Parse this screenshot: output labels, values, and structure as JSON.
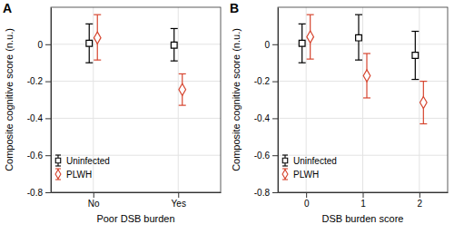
{
  "chart_data": [
    {
      "type": "errorbar",
      "title": "A",
      "x_label": "Poor DSB burden",
      "y_label": "Composite cognitive score (n.u.)",
      "categories": [
        "No",
        "Yes"
      ],
      "series": [
        {
          "name": "Uninfected",
          "color": "#000000",
          "marker": "square",
          "values": [
            0.005,
            -0.005
          ],
          "ci_low": [
            -0.1,
            -0.09
          ],
          "ci_high": [
            0.11,
            0.085
          ]
        },
        {
          "name": "PLWH",
          "color": "#d6452f",
          "marker": "diamond",
          "values": [
            0.035,
            -0.245
          ],
          "ci_low": [
            -0.085,
            -0.33
          ],
          "ci_high": [
            0.16,
            -0.16
          ]
        }
      ],
      "ylim": [
        -0.8,
        0.2
      ],
      "yticks": [
        -0.8,
        -0.6,
        -0.4,
        -0.2,
        0
      ],
      "grid": true,
      "legend": "lower left"
    },
    {
      "type": "errorbar",
      "title": "B",
      "x_label": "DSB burden score",
      "y_label": "Composite cognitive score (n.u.)",
      "categories": [
        "0",
        "1",
        "2"
      ],
      "series": [
        {
          "name": "Uninfected",
          "color": "#000000",
          "marker": "square",
          "values": [
            0.005,
            0.035,
            -0.06
          ],
          "ci_low": [
            -0.1,
            -0.085,
            -0.19
          ],
          "ci_high": [
            0.11,
            0.16,
            0.07
          ]
        },
        {
          "name": "PLWH",
          "color": "#d6452f",
          "marker": "diamond",
          "values": [
            0.04,
            -0.17,
            -0.315
          ],
          "ci_low": [
            -0.08,
            -0.29,
            -0.43
          ],
          "ci_high": [
            0.16,
            -0.05,
            -0.2
          ]
        }
      ],
      "ylim": [
        -0.8,
        0.2
      ],
      "yticks": [
        -0.8,
        -0.6,
        -0.4,
        -0.2,
        0
      ],
      "grid": true,
      "legend": "lower left"
    }
  ]
}
